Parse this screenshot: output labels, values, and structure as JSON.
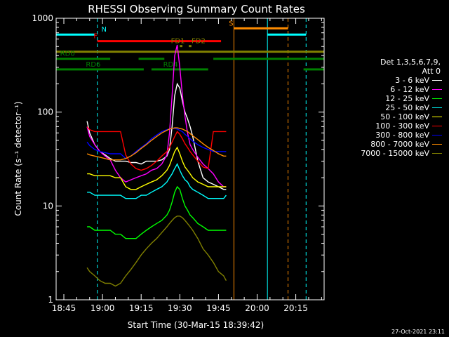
{
  "chart_data": {
    "type": "line",
    "title": "RHESSI Observing Summary Count Rates",
    "xlabel": "Start Time (30-Mar-15 18:39:42)",
    "ylabel": "Count Rate (s⁻¹ detector⁻¹)",
    "yscale": "log",
    "ylim": [
      1,
      1000
    ],
    "xlim_minutes": [
      -3,
      101
    ],
    "x_tick_labels": [
      "18:45",
      "19:00",
      "19:15",
      "19:30",
      "19:45",
      "20:00",
      "20:15"
    ],
    "x_tick_minutes": [
      0,
      15,
      30,
      45,
      60,
      75,
      90
    ],
    "y_tick_labels": [
      "1",
      "10",
      "100",
      "1000"
    ],
    "y_tick_values": [
      1,
      10,
      100,
      1000
    ],
    "legend_header": [
      "Det 1,3,5,6,7,9,",
      "Att 0"
    ],
    "series": [
      {
        "name": "3 - 6 keV",
        "color": "#ffffff",
        "x": [
          9,
          10,
          12,
          14,
          16,
          18,
          20,
          22,
          24,
          26,
          28,
          30,
          32,
          34,
          36,
          38,
          40,
          41,
          42,
          43,
          44,
          45,
          46,
          47,
          48,
          49,
          50,
          52,
          54,
          56,
          58,
          60,
          62,
          63
        ],
        "y": [
          80,
          60,
          45,
          38,
          35,
          32,
          30,
          30,
          30,
          29,
          29,
          28,
          30,
          30,
          30,
          31,
          34,
          40,
          70,
          150,
          200,
          180,
          130,
          100,
          85,
          70,
          55,
          30,
          20,
          18,
          17,
          16,
          15,
          15
        ]
      },
      {
        "name": "6 - 12 keV",
        "color": "#ff00ff",
        "x": [
          9,
          10,
          12,
          14,
          16,
          18,
          20,
          22,
          24,
          26,
          28,
          30,
          32,
          34,
          36,
          38,
          40,
          41,
          42,
          43,
          44,
          45,
          46,
          47,
          48,
          49,
          50,
          52,
          54,
          56,
          58,
          60,
          62,
          63
        ],
        "y": [
          70,
          55,
          45,
          38,
          34,
          31,
          24,
          20,
          18,
          19,
          20,
          21,
          22,
          24,
          25,
          28,
          35,
          60,
          150,
          400,
          520,
          300,
          150,
          90,
          60,
          45,
          40,
          33,
          28,
          25,
          22,
          18,
          16,
          16
        ]
      },
      {
        "name": "12 - 25 keV",
        "color": "#00ff00",
        "x": [
          9,
          10,
          12,
          14,
          16,
          18,
          20,
          22,
          24,
          26,
          28,
          30,
          32,
          34,
          36,
          38,
          40,
          41,
          42,
          43,
          44,
          45,
          46,
          47,
          48,
          49,
          50,
          52,
          54,
          56,
          58,
          60,
          62,
          63
        ],
        "y": [
          6,
          6,
          5.5,
          5.5,
          5.5,
          5.5,
          5,
          5,
          4.5,
          4.5,
          4.5,
          5,
          5.5,
          6,
          6.5,
          7,
          8,
          9,
          11,
          14,
          16,
          15,
          12,
          10,
          9,
          8,
          7.5,
          6.5,
          6,
          5.5,
          5.5,
          5.5,
          5.5,
          5.5
        ]
      },
      {
        "name": "25 - 50 keV",
        "color": "#00ffff",
        "x": [
          9,
          10,
          12,
          14,
          16,
          18,
          20,
          22,
          24,
          26,
          28,
          30,
          32,
          34,
          36,
          38,
          40,
          41,
          42,
          43,
          44,
          45,
          46,
          47,
          48,
          49,
          50,
          52,
          54,
          56,
          58,
          60,
          62,
          63
        ],
        "y": [
          14,
          14,
          13,
          13,
          13,
          13,
          13,
          13,
          12,
          12,
          12,
          13,
          13,
          14,
          15,
          16,
          18,
          20,
          22,
          25,
          28,
          24,
          21,
          19,
          18,
          16,
          15,
          14,
          13,
          12,
          12,
          12,
          12,
          13
        ]
      },
      {
        "name": "50 - 100 keV",
        "color": "#ffff00",
        "x": [
          9,
          10,
          12,
          14,
          16,
          18,
          20,
          22,
          24,
          26,
          28,
          30,
          32,
          34,
          36,
          38,
          40,
          41,
          42,
          43,
          44,
          45,
          46,
          47,
          48,
          49,
          50,
          52,
          54,
          56,
          58,
          60,
          62,
          63
        ],
        "y": [
          22,
          22,
          21,
          21,
          21,
          21,
          20,
          20,
          16,
          15,
          15,
          16,
          17,
          18,
          19,
          21,
          24,
          27,
          32,
          38,
          42,
          36,
          30,
          26,
          24,
          22,
          20,
          18,
          17,
          16,
          16,
          16,
          16,
          16
        ]
      },
      {
        "name": "100 - 300 keV",
        "color": "#ff0000",
        "x": [
          9,
          10,
          12,
          14,
          16,
          18,
          20,
          22,
          24,
          26,
          28,
          30,
          32,
          34,
          36,
          38,
          40,
          41,
          42,
          43,
          44,
          45,
          46,
          47,
          48,
          49,
          50,
          52,
          54,
          56,
          58,
          60,
          62,
          63
        ],
        "y": [
          70,
          65,
          62,
          62,
          62,
          62,
          62,
          62,
          35,
          28,
          25,
          24,
          25,
          27,
          30,
          34,
          38,
          42,
          48,
          55,
          62,
          58,
          52,
          46,
          42,
          38,
          35,
          30,
          26,
          25,
          62,
          62,
          62,
          62
        ]
      },
      {
        "name": "300 - 800 keV",
        "color": "#0000ff",
        "x": [
          9,
          10,
          12,
          14,
          16,
          18,
          20,
          22,
          24,
          26,
          28,
          30,
          32,
          34,
          36,
          38,
          40,
          41,
          42,
          43,
          44,
          45,
          46,
          47,
          48,
          49,
          50,
          52,
          54,
          56,
          58,
          60,
          62,
          63
        ],
        "y": [
          48,
          44,
          40,
          38,
          37,
          36,
          36,
          36,
          32,
          34,
          38,
          42,
          46,
          52,
          57,
          62,
          65,
          66,
          67,
          67,
          66,
          64,
          62,
          58,
          55,
          52,
          49,
          45,
          42,
          40,
          38,
          38,
          38,
          38
        ]
      },
      {
        "name": "800 - 7000 keV",
        "color": "#ff8c00",
        "x": [
          9,
          10,
          12,
          14,
          16,
          18,
          20,
          22,
          24,
          26,
          28,
          30,
          32,
          34,
          36,
          38,
          40,
          41,
          42,
          43,
          44,
          45,
          46,
          47,
          48,
          49,
          50,
          52,
          54,
          56,
          58,
          60,
          62,
          63
        ],
        "y": [
          36,
          35,
          34,
          33,
          32,
          31,
          31,
          31,
          32,
          34,
          37,
          41,
          45,
          50,
          55,
          60,
          64,
          66,
          67,
          68,
          68,
          67,
          66,
          64,
          62,
          59,
          56,
          51,
          46,
          42,
          39,
          36,
          34,
          34
        ]
      },
      {
        "name": "7000 - 15000 keV",
        "color": "#808000",
        "x": [
          9,
          10,
          12,
          14,
          16,
          18,
          20,
          22,
          24,
          26,
          28,
          30,
          32,
          34,
          36,
          38,
          40,
          41,
          42,
          43,
          44,
          45,
          46,
          47,
          48,
          49,
          50,
          52,
          54,
          56,
          58,
          60,
          62,
          63
        ],
        "y": [
          2.2,
          2,
          1.8,
          1.6,
          1.5,
          1.5,
          1.4,
          1.5,
          1.8,
          2.1,
          2.5,
          3,
          3.5,
          4,
          4.5,
          5.2,
          6,
          6.5,
          7,
          7.5,
          7.8,
          7.8,
          7.5,
          7,
          6.5,
          6,
          5.5,
          4.5,
          3.5,
          3,
          2.5,
          2,
          1.8,
          1.6
        ]
      }
    ],
    "vertical_markers": [
      {
        "minute": -3,
        "color": "#00ffff",
        "style": "solid"
      },
      {
        "minute": 13,
        "color": "#00ffff",
        "style": "dashed"
      },
      {
        "minute": 66,
        "color": "#ff8c00",
        "style": "solid"
      },
      {
        "minute": 79,
        "color": "#00ffff",
        "style": "solid"
      },
      {
        "minute": 87,
        "color": "#ff8c00",
        "style": "dashed"
      },
      {
        "minute": 94,
        "color": "#00ffff",
        "style": "dashed"
      }
    ],
    "flag_bars": [
      {
        "label": "N",
        "color": "#00ffff",
        "y": 670,
        "segments": [
          [
            -3,
            12
          ],
          [
            79,
            94
          ]
        ],
        "label_minute": 14
      },
      {
        "label": "S",
        "color": "#ff8c00",
        "y": 780,
        "segments": [
          [
            66,
            87
          ]
        ],
        "label_minute": 63.5
      },
      {
        "label": "F",
        "color": "#ff0000",
        "y": 570,
        "segments": [
          [
            13,
            61
          ]
        ],
        "label_minute": 11
      },
      {
        "label": "FD1",
        "color": "#808000",
        "y": 505,
        "segments": [
          [
            45,
            46
          ]
        ],
        "label_minute": 41
      },
      {
        "label": "FD2",
        "color": "#808000",
        "y": 505,
        "segments": [
          [
            48.5,
            49.5
          ]
        ],
        "label_minute": 49
      },
      {
        "label": "",
        "color": "#808000",
        "y": 440,
        "segments": [
          [
            -3,
            101
          ]
        ],
        "label_minute": -3
      },
      {
        "label": "RD0",
        "color": "#008000",
        "y": 370,
        "segments": [
          [
            -3,
            18
          ],
          [
            29,
            39
          ],
          [
            58,
            101
          ]
        ],
        "label_minute": -2
      },
      {
        "label": "RD4",
        "color": "#008000",
        "y": 285,
        "segments": [
          [
            34,
            56
          ]
        ],
        "label_minute": 38
      },
      {
        "label": "RD6",
        "color": "#008000",
        "y": 285,
        "segments": [
          [
            -3,
            31
          ],
          [
            93,
            101
          ]
        ],
        "label_minute": 8
      }
    ]
  },
  "footer": {
    "timestamp": "27-Oct-2021 23:11"
  }
}
